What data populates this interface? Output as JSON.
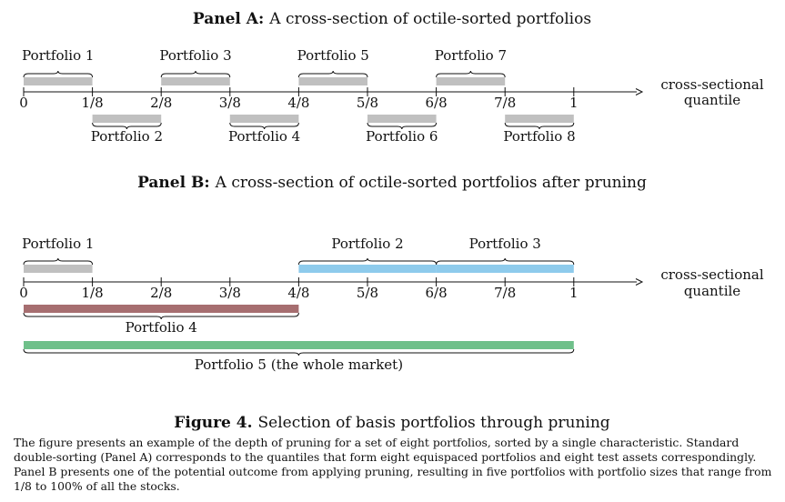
{
  "panel_a": {
    "title_bold": "Panel A:",
    "title_rest": "A cross-section of octile-sorted portfolios",
    "ticks": [
      "0",
      "1/8",
      "2/8",
      "3/8",
      "4/8",
      "5/8",
      "6/8",
      "7/8",
      "1"
    ],
    "axis_label_line1": "cross-sectional",
    "axis_label_line2": "quantile",
    "portfolios": [
      {
        "label": "Portfolio 1",
        "start": 0,
        "end": 1,
        "side": "above",
        "color": "#c0c0c0"
      },
      {
        "label": "Portfolio 2",
        "start": 1,
        "end": 2,
        "side": "below",
        "color": "#c0c0c0"
      },
      {
        "label": "Portfolio 3",
        "start": 2,
        "end": 3,
        "side": "above",
        "color": "#c0c0c0"
      },
      {
        "label": "Portfolio 4",
        "start": 3,
        "end": 4,
        "side": "below",
        "color": "#c0c0c0"
      },
      {
        "label": "Portfolio 5",
        "start": 4,
        "end": 5,
        "side": "above",
        "color": "#c0c0c0"
      },
      {
        "label": "Portfolio 6",
        "start": 5,
        "end": 6,
        "side": "below",
        "color": "#c0c0c0"
      },
      {
        "label": "Portfolio 7",
        "start": 6,
        "end": 7,
        "side": "above",
        "color": "#c0c0c0"
      },
      {
        "label": "Portfolio 8",
        "start": 7,
        "end": 8,
        "side": "below",
        "color": "#c0c0c0"
      }
    ]
  },
  "panel_b": {
    "title_bold": "Panel B:",
    "title_rest": "A cross-section of octile-sorted portfolios after pruning",
    "ticks": [
      "0",
      "1/8",
      "2/8",
      "3/8",
      "4/8",
      "5/8",
      "6/8",
      "7/8",
      "1"
    ],
    "axis_label_line1": "cross-sectional",
    "axis_label_line2": "quantile",
    "portfolios": [
      {
        "label": "Portfolio 1",
        "start": 0,
        "end": 1,
        "side": "above",
        "color": "#c0c0c0"
      },
      {
        "label": "Portfolio 2",
        "start": 4,
        "end": 6,
        "side": "above",
        "color": "#8ecbec"
      },
      {
        "label": "Portfolio 3",
        "start": 6,
        "end": 8,
        "side": "above",
        "color": "#8ecbec"
      },
      {
        "label": "Portfolio 4",
        "start": 0,
        "end": 4,
        "side": "below",
        "color": "#a66e70"
      },
      {
        "label": "Portfolio 5 (the whole market)",
        "start": 0,
        "end": 8,
        "side": "below",
        "color": "#6fc08a"
      }
    ]
  },
  "figure": {
    "number": "Figure 4.",
    "title": "Selection of basis portfolios through pruning",
    "caption": "The figure presents an example of the depth of pruning for a set of eight portfolios, sorted by a single characteristic. Standard double-sorting (Panel A) corresponds to the quantiles that form eight equispaced portfolios and eight test assets correspondingly. Panel B presents one of the potential outcome from applying pruning, resulting in five portfolios with portfolio sizes that range from 1/8 to 100% of all the stocks."
  }
}
